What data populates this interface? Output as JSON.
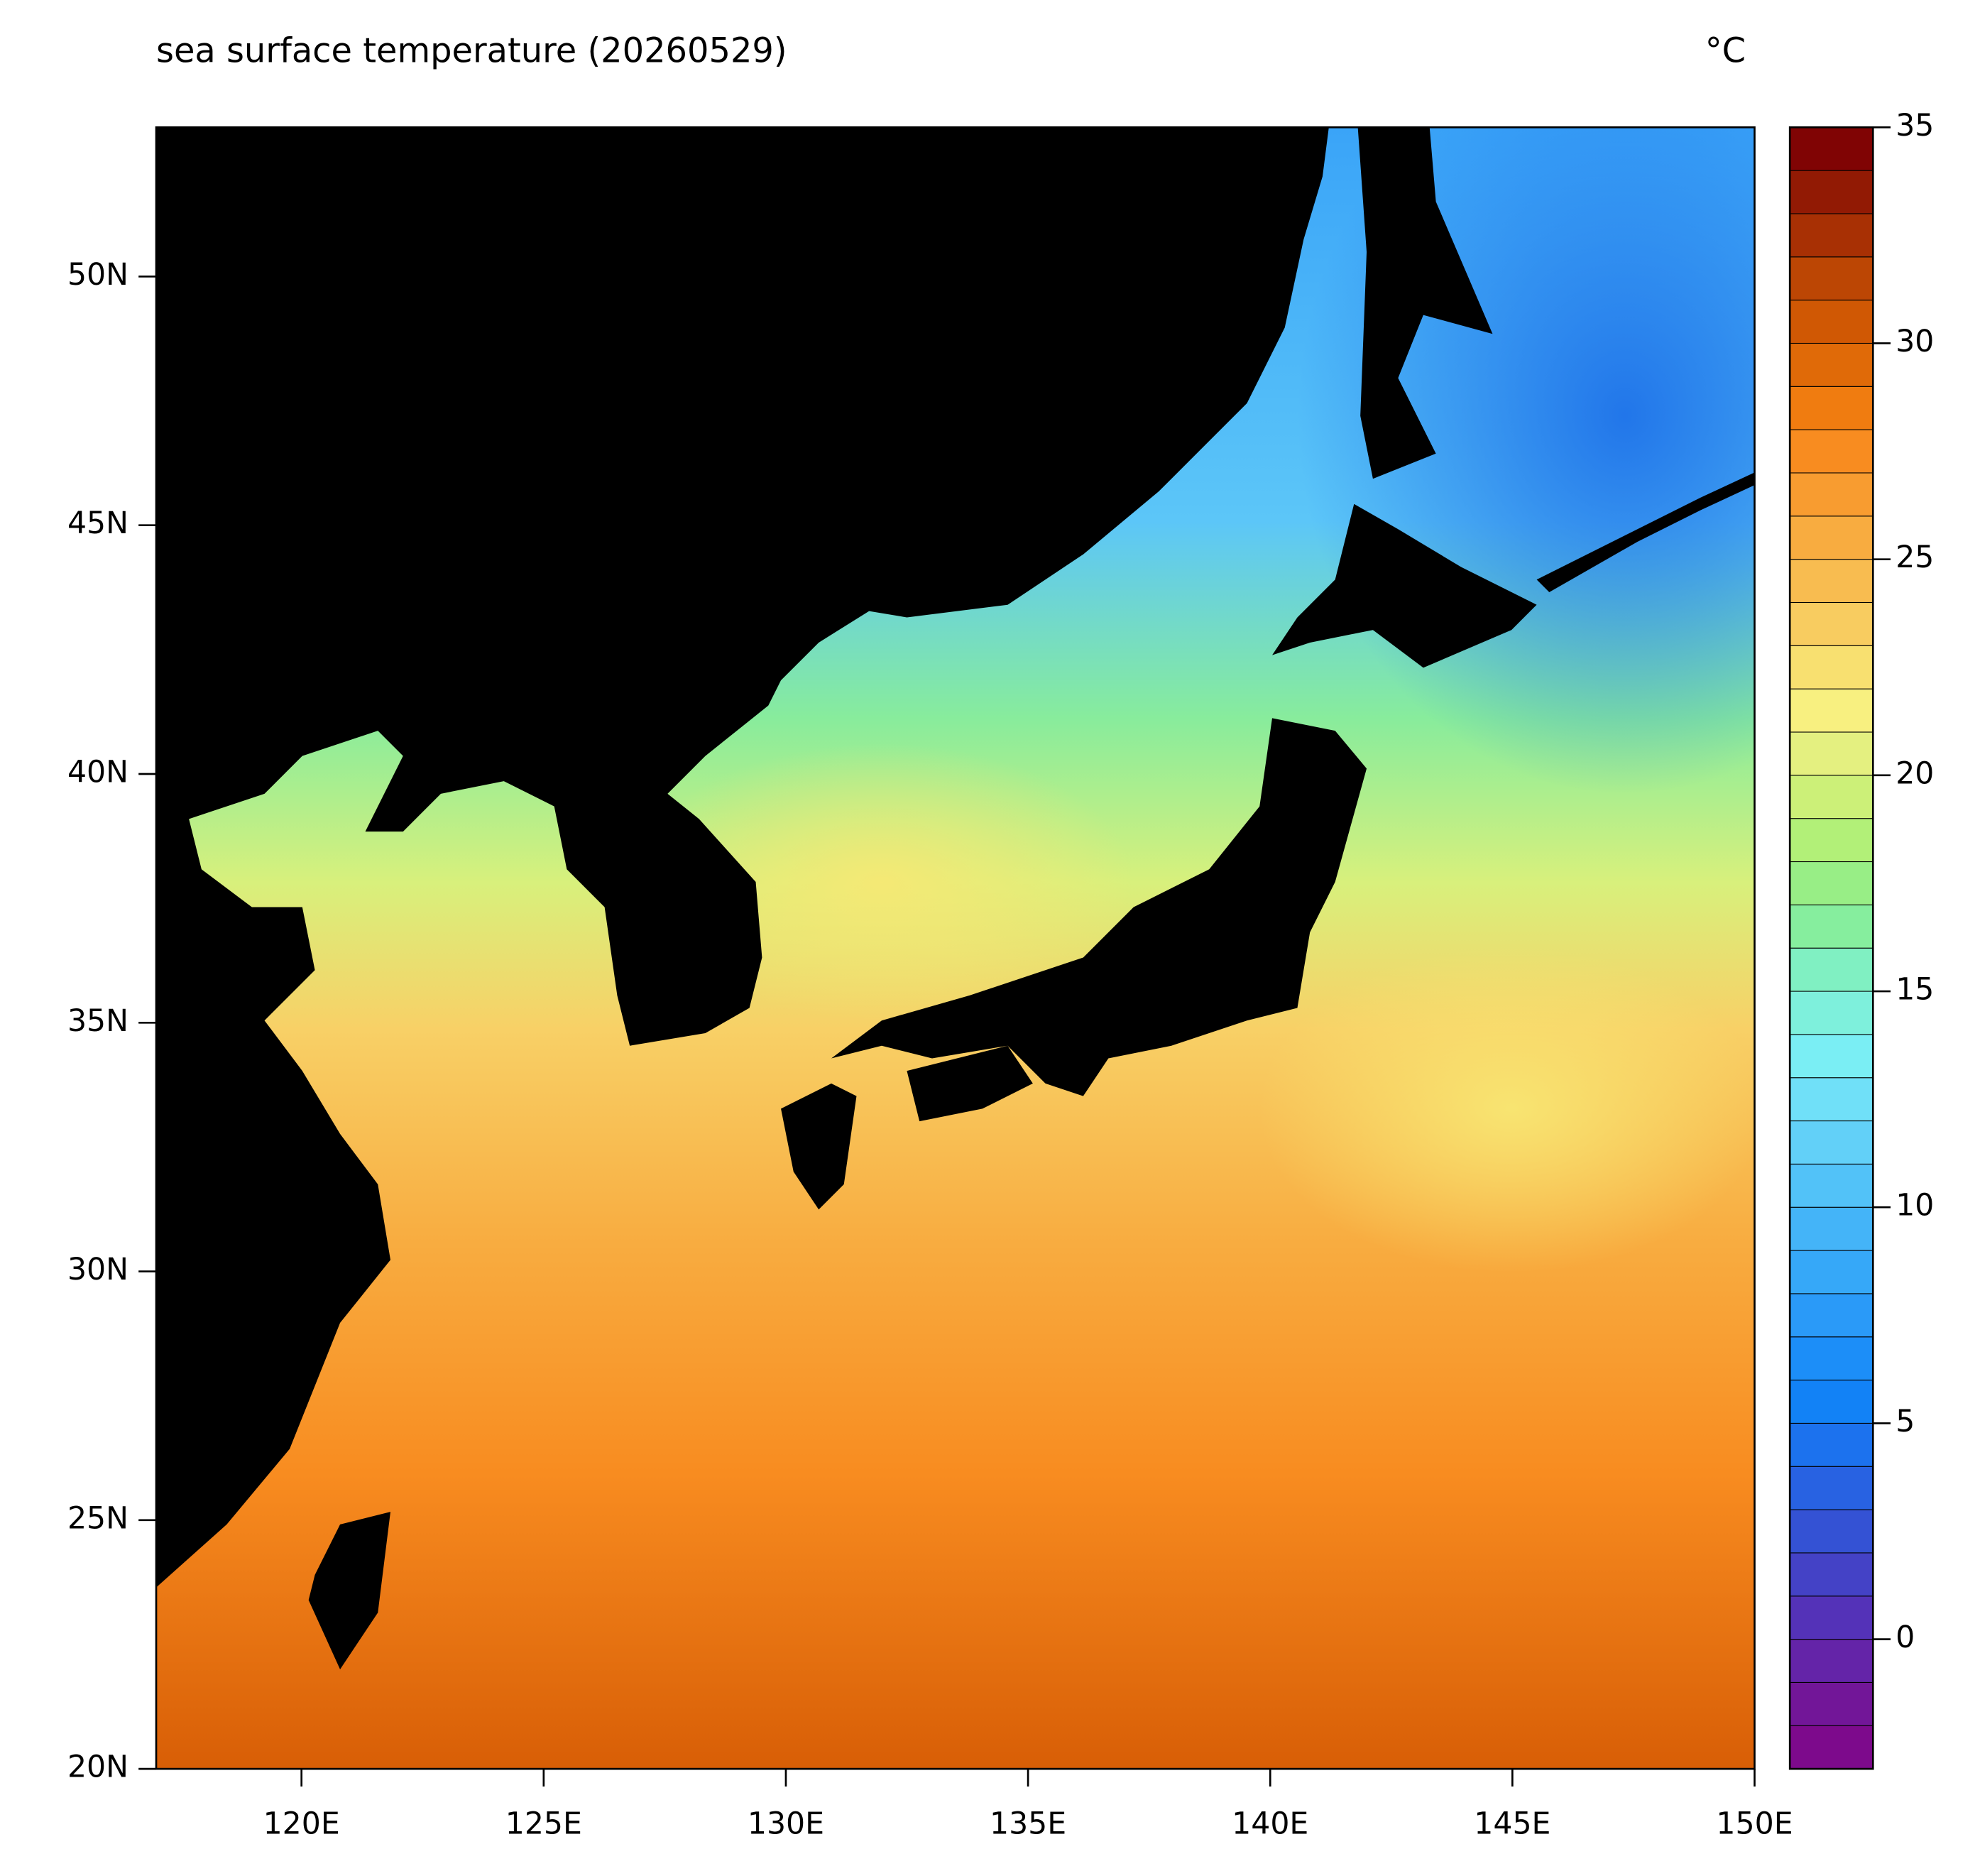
{
  "chart_data": {
    "type": "map",
    "title": "sea surface temperature (20260529)",
    "unit": "°C",
    "xlim": [
      117,
      150
    ],
    "ylim": [
      20,
      53
    ],
    "xticks": [
      {
        "value": 120,
        "label": "120E"
      },
      {
        "value": 125,
        "label": "125E"
      },
      {
        "value": 130,
        "label": "130E"
      },
      {
        "value": 135,
        "label": "135E"
      },
      {
        "value": 140,
        "label": "140E"
      },
      {
        "value": 145,
        "label": "145E"
      },
      {
        "value": 150,
        "label": "150E"
      }
    ],
    "yticks": [
      {
        "value": 20,
        "label": "20N"
      },
      {
        "value": 25,
        "label": "25N"
      },
      {
        "value": 30,
        "label": "30N"
      },
      {
        "value": 35,
        "label": "35N"
      },
      {
        "value": 40,
        "label": "40N"
      },
      {
        "value": 45,
        "label": "45N"
      },
      {
        "value": 50,
        "label": "50N"
      }
    ],
    "colorbar": {
      "lim": [
        -3,
        35
      ],
      "ticks": [
        0,
        5,
        10,
        15,
        20,
        25,
        30,
        35
      ],
      "colors": [
        "#7d0a8c",
        "#721698",
        "#6424a8",
        "#5432b8",
        "#4442c6",
        "#3452d4",
        "#2862e2",
        "#1c72ee",
        "#1282f6",
        "#1c8ef8",
        "#2a9af8",
        "#36a8f8",
        "#44b4f8",
        "#52c2f8",
        "#62d0f8",
        "#70e0f8",
        "#7aeef4",
        "#7ef0dc",
        "#80f0c2",
        "#86ee9e",
        "#98ee86",
        "#b2f078",
        "#ccf078",
        "#e4f080",
        "#f8f080",
        "#f8e070",
        "#f8cc60",
        "#f8bc50",
        "#f8ac40",
        "#f89c30",
        "#f88c20",
        "#f07c10",
        "#e06a08",
        "#d05804",
        "#bc4604",
        "#a83004",
        "#921a04",
        "#800404"
      ]
    }
  }
}
